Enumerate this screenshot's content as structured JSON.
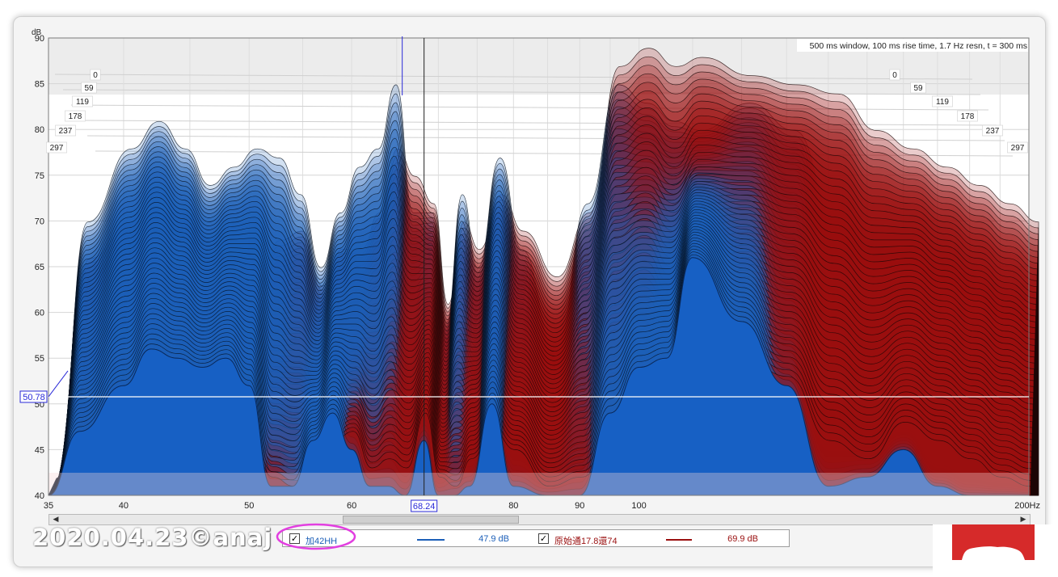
{
  "chart_data": {
    "type": "area",
    "subtype": "waterfall",
    "info_text": "500 ms window, 100 ms rise time,  1.7 Hz resn, t = 300 ms",
    "ylabel": "dB",
    "x_scale": "log",
    "xlim": [
      35,
      200
    ],
    "ylim": [
      40,
      90
    ],
    "x_ticks": [
      "35",
      "40",
      "50",
      "60",
      "80",
      "90",
      "100",
      "200Hz"
    ],
    "y_ticks": [
      "40",
      "45",
      "50",
      "55",
      "60",
      "65",
      "70",
      "75",
      "80",
      "85",
      "90"
    ],
    "depth_ticks": [
      "0",
      "59",
      "119",
      "178",
      "237",
      "297"
    ],
    "cursor": {
      "x_label": "68.24",
      "y_label": "50.78",
      "x": 68.24,
      "y": 50.78
    },
    "series": [
      {
        "name": "加42HH",
        "color": "#1c5fb8",
        "legend_value": "47.9 dB",
        "x": [
          35,
          37,
          40,
          42,
          44,
          46,
          48,
          50,
          52,
          54,
          56,
          58,
          60,
          62,
          64,
          66,
          68.24,
          70,
          72,
          74,
          77,
          80,
          85,
          90,
          95,
          100,
          105,
          110,
          120,
          130,
          140,
          150,
          160,
          170,
          180,
          190,
          200
        ],
        "first_slice": [
          41,
          69,
          77,
          80,
          77,
          73,
          75,
          77,
          76,
          72,
          64,
          70,
          75,
          77,
          84,
          70,
          70,
          58,
          72,
          64,
          76,
          66,
          55,
          71,
          84,
          82,
          80,
          79,
          82,
          79,
          69,
          62,
          59,
          55,
          52,
          49,
          46
        ],
        "last_slice": [
          40,
          47,
          52,
          56,
          55,
          54,
          55,
          52,
          41,
          41,
          46,
          49,
          45,
          41,
          41,
          40,
          46,
          40,
          40,
          41,
          50,
          41,
          40,
          40,
          49,
          54,
          55,
          66,
          59,
          52,
          41,
          42,
          45,
          41,
          40,
          40,
          40
        ]
      },
      {
        "name": "原始通17.8還74",
        "color": "#9a0f0f",
        "legend_value": "69.9 dB",
        "x": [
          35,
          37,
          40,
          42,
          44,
          46,
          48,
          50,
          52,
          54,
          56,
          58,
          60,
          62,
          64,
          66,
          68.24,
          70,
          72,
          74,
          77,
          80,
          85,
          90,
          95,
          100,
          105,
          110,
          120,
          130,
          140,
          150,
          160,
          170,
          180,
          190,
          200
        ],
        "first_slice": [
          41,
          65,
          69,
          70,
          70,
          67,
          63,
          64,
          67,
          68,
          62,
          66,
          66,
          70,
          77,
          74,
          71,
          60,
          69,
          66,
          72,
          68,
          63,
          70,
          86,
          88,
          86,
          87,
          85,
          84,
          83,
          79,
          77,
          75,
          73,
          71,
          69
        ],
        "last_slice": [
          40,
          45,
          48,
          50,
          49,
          47,
          46,
          46,
          42,
          41,
          42,
          46,
          47,
          43,
          44,
          43,
          49,
          42,
          41,
          44,
          47,
          45,
          41,
          42,
          45,
          47,
          42,
          52,
          55,
          53,
          46,
          44,
          48,
          46,
          44,
          42,
          41
        ]
      }
    ]
  },
  "legend": {
    "series1_label": "加42HH",
    "series1_value": "47.9 dB",
    "series2_label": "原始通17.8還74",
    "series2_value": "69.9 dB",
    "check_glyph": "✓"
  },
  "scrollbar": {
    "left_arrow": "◀",
    "right_arrow": "▶"
  },
  "watermark": "2020.04.23©anaj",
  "colors": {
    "series1": "#1c5fb8",
    "series2": "#9a0f0f",
    "highlight_ellipse": "#e23fe0"
  }
}
